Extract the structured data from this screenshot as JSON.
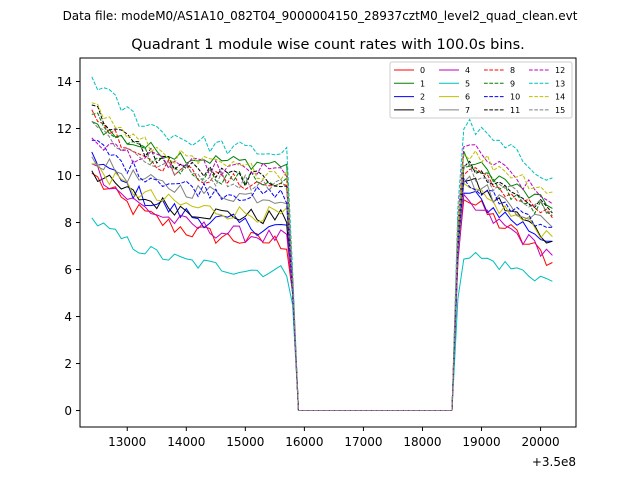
{
  "figure": {
    "suptitle": "Data file: modeM0/AS1A10_082T04_9000004150_28937cztM0_level2_quad_clean.evt",
    "title": "Quadrant 1 module wise count rates with 100.0s bins.",
    "offset_label": "+3.5e8"
  },
  "chart_data": {
    "type": "line",
    "title": "Quadrant 1 module wise count rates with 100.0s bins.",
    "xlabel": "",
    "ylabel": "",
    "x_offset": 350000000,
    "xlim": [
      12200,
      20600
    ],
    "ylim": [
      -0.7,
      15
    ],
    "xticks": [
      13000,
      14000,
      15000,
      16000,
      17000,
      18000,
      19000,
      20000
    ],
    "xtick_labels": [
      "13000",
      "14000",
      "15000",
      "16000",
      "17000",
      "18000",
      "19000",
      "20000"
    ],
    "yticks": [
      0,
      2,
      4,
      6,
      8,
      10,
      12,
      14
    ],
    "ytick_labels": [
      "0",
      "2",
      "4",
      "6",
      "8",
      "10",
      "12",
      "14"
    ],
    "grid": false,
    "legend": "top-right",
    "segments": {
      "seg1_start": 12400,
      "seg1_end": 15800,
      "gap_start": 15900,
      "gap_end": 18500,
      "seg2_start": 18600,
      "seg2_end": 20200,
      "bin": 100
    },
    "series": [
      {
        "name": "0",
        "color": "#ff0000",
        "dash": "solid",
        "start": 10.1,
        "plateau1": 7.0,
        "pre_drop": 5.0,
        "peak2": 9.3,
        "end2": 6.3,
        "noise": 0.4
      },
      {
        "name": "1",
        "color": "#008000",
        "dash": "solid",
        "start": 12.3,
        "plateau1": 10.4,
        "pre_drop": 5.5,
        "peak2": 10.9,
        "end2": 8.6,
        "noise": 0.3
      },
      {
        "name": "2",
        "color": "#0000ff",
        "dash": "solid",
        "start": 11.0,
        "plateau1": 7.6,
        "pre_drop": 5.0,
        "peak2": 9.4,
        "end2": 7.2,
        "noise": 0.4
      },
      {
        "name": "3",
        "color": "#000000",
        "dash": "solid",
        "start": 10.2,
        "plateau1": 8.1,
        "pre_drop": 5.0,
        "peak2": 10.1,
        "end2": 7.2,
        "noise": 0.35
      },
      {
        "name": "4",
        "color": "#bf00bf",
        "dash": "solid",
        "start": 10.5,
        "plateau1": 7.2,
        "pre_drop": 5.0,
        "peak2": 9.0,
        "end2": 6.6,
        "noise": 0.35
      },
      {
        "name": "5",
        "color": "#00bfbf",
        "dash": "solid",
        "start": 8.2,
        "plateau1": 5.8,
        "pre_drop": 4.5,
        "peak2": 6.8,
        "end2": 5.5,
        "noise": 0.3
      },
      {
        "name": "6",
        "color": "#bfbf00",
        "dash": "solid",
        "start": 10.5,
        "plateau1": 8.2,
        "pre_drop": 5.0,
        "peak2": 9.6,
        "end2": 7.4,
        "noise": 0.35
      },
      {
        "name": "7",
        "color": "#808080",
        "dash": "solid",
        "start": 10.8,
        "plateau1": 9.0,
        "pre_drop": 5.0,
        "peak2": 10.0,
        "end2": 7.8,
        "noise": 0.35
      },
      {
        "name": "8",
        "color": "#ff0000",
        "dash": "dashed",
        "start": 12.8,
        "plateau1": 9.4,
        "pre_drop": 5.5,
        "peak2": 10.5,
        "end2": 8.2,
        "noise": 0.35
      },
      {
        "name": "9",
        "color": "#008000",
        "dash": "dashed",
        "start": 12.6,
        "plateau1": 9.6,
        "pre_drop": 5.5,
        "peak2": 10.5,
        "end2": 8.3,
        "noise": 0.35
      },
      {
        "name": "10",
        "color": "#0000ff",
        "dash": "dashed",
        "start": 11.5,
        "plateau1": 9.0,
        "pre_drop": 5.0,
        "peak2": 9.8,
        "end2": 7.8,
        "noise": 0.35
      },
      {
        "name": "11",
        "color": "#000000",
        "dash": "dashed",
        "start": 13.0,
        "plateau1": 9.6,
        "pre_drop": 5.5,
        "peak2": 10.6,
        "end2": 8.4,
        "noise": 0.35
      },
      {
        "name": "12",
        "color": "#bf00bf",
        "dash": "dashed",
        "start": 11.6,
        "plateau1": 10.1,
        "pre_drop": 5.5,
        "peak2": 11.5,
        "end2": 8.8,
        "noise": 0.35
      },
      {
        "name": "13",
        "color": "#00bfbf",
        "dash": "dashed",
        "start": 14.2,
        "plateau1": 10.8,
        "pre_drop": 6.0,
        "peak2": 12.4,
        "end2": 9.9,
        "noise": 0.35
      },
      {
        "name": "14",
        "color": "#bfbf00",
        "dash": "dashed",
        "start": 13.1,
        "plateau1": 10.0,
        "pre_drop": 5.5,
        "peak2": 11.2,
        "end2": 9.3,
        "noise": 0.35
      },
      {
        "name": "15",
        "color": "#808080",
        "dash": "dashed",
        "start": 12.3,
        "plateau1": 9.5,
        "pre_drop": 5.5,
        "peak2": 10.4,
        "end2": 8.5,
        "noise": 0.35
      }
    ]
  }
}
